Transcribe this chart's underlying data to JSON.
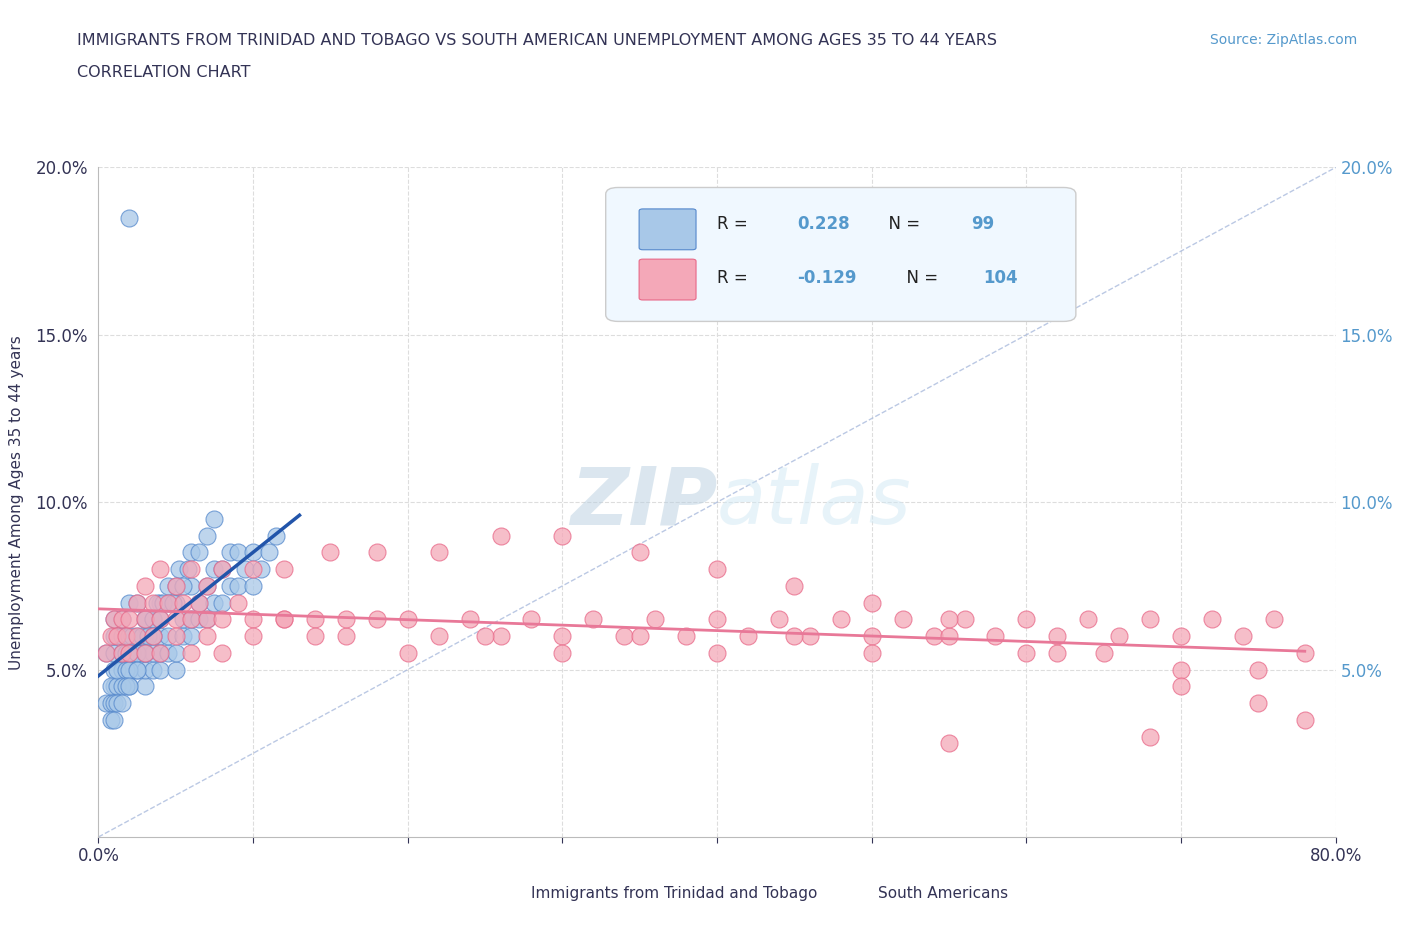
{
  "title_line1": "IMMIGRANTS FROM TRINIDAD AND TOBAGO VS SOUTH AMERICAN UNEMPLOYMENT AMONG AGES 35 TO 44 YEARS",
  "title_line2": "CORRELATION CHART",
  "source_text": "Source: ZipAtlas.com",
  "ylabel": "Unemployment Among Ages 35 to 44 years",
  "xlim": [
    0,
    0.8
  ],
  "ylim": [
    0,
    0.2
  ],
  "r_blue": "0.228",
  "n_blue": "99",
  "r_pink": "-0.129",
  "n_pink": "104",
  "blue_color": "#a8c8e8",
  "pink_color": "#f4a8b8",
  "blue_edge": "#5588cc",
  "pink_edge": "#e86888",
  "trend_blue": "#2255aa",
  "trend_pink": "#e87898",
  "diag_color": "#aabbdd",
  "title_color": "#333355",
  "axis_color": "#333355",
  "source_color": "#5599cc",
  "grid_color": "#dddddd",
  "legend_fill": "#f0f8ff",
  "legend_edge": "#cccccc",
  "watermark_color": "#d0e4f0",
  "blue_x": [
    0.005,
    0.01,
    0.01,
    0.01,
    0.01,
    0.01,
    0.015,
    0.015,
    0.015,
    0.015,
    0.02,
    0.02,
    0.02,
    0.02,
    0.02,
    0.025,
    0.025,
    0.025,
    0.025,
    0.03,
    0.03,
    0.03,
    0.03,
    0.03,
    0.035,
    0.035,
    0.035,
    0.04,
    0.04,
    0.04,
    0.04,
    0.045,
    0.045,
    0.045,
    0.05,
    0.05,
    0.05,
    0.055,
    0.055,
    0.06,
    0.06,
    0.06,
    0.065,
    0.065,
    0.07,
    0.07,
    0.075,
    0.075,
    0.08,
    0.08,
    0.085,
    0.085,
    0.09,
    0.09,
    0.095,
    0.1,
    0.1,
    0.105,
    0.11,
    0.115,
    0.005,
    0.008,
    0.008,
    0.01,
    0.012,
    0.012,
    0.015,
    0.018,
    0.018,
    0.02,
    0.022,
    0.022,
    0.025,
    0.028,
    0.03,
    0.032,
    0.035,
    0.038,
    0.04,
    0.042,
    0.045,
    0.048,
    0.05,
    0.052,
    0.055,
    0.058,
    0.06,
    0.065,
    0.07,
    0.075,
    0.008,
    0.01,
    0.012,
    0.015,
    0.018,
    0.02,
    0.025,
    0.03,
    0.035
  ],
  "blue_y": [
    0.055,
    0.045,
    0.05,
    0.055,
    0.06,
    0.065,
    0.05,
    0.055,
    0.06,
    0.065,
    0.045,
    0.05,
    0.055,
    0.06,
    0.07,
    0.05,
    0.055,
    0.06,
    0.07,
    0.045,
    0.05,
    0.055,
    0.06,
    0.065,
    0.05,
    0.055,
    0.065,
    0.05,
    0.055,
    0.06,
    0.07,
    0.055,
    0.06,
    0.07,
    0.05,
    0.055,
    0.07,
    0.06,
    0.065,
    0.06,
    0.065,
    0.075,
    0.065,
    0.07,
    0.065,
    0.075,
    0.07,
    0.08,
    0.07,
    0.08,
    0.075,
    0.085,
    0.075,
    0.085,
    0.08,
    0.075,
    0.085,
    0.08,
    0.085,
    0.09,
    0.04,
    0.04,
    0.045,
    0.04,
    0.045,
    0.05,
    0.045,
    0.05,
    0.055,
    0.05,
    0.055,
    0.06,
    0.055,
    0.06,
    0.065,
    0.06,
    0.065,
    0.07,
    0.065,
    0.07,
    0.075,
    0.07,
    0.075,
    0.08,
    0.075,
    0.08,
    0.085,
    0.085,
    0.09,
    0.095,
    0.035,
    0.035,
    0.04,
    0.04,
    0.045,
    0.045,
    0.05,
    0.055,
    0.06
  ],
  "blue_outlier_x": [
    0.02
  ],
  "blue_outlier_y": [
    0.185
  ],
  "pink_x": [
    0.005,
    0.008,
    0.01,
    0.012,
    0.015,
    0.018,
    0.02,
    0.025,
    0.03,
    0.035,
    0.04,
    0.045,
    0.05,
    0.055,
    0.06,
    0.065,
    0.07,
    0.08,
    0.09,
    0.1,
    0.12,
    0.14,
    0.16,
    0.18,
    0.2,
    0.22,
    0.24,
    0.26,
    0.28,
    0.3,
    0.32,
    0.34,
    0.36,
    0.38,
    0.4,
    0.42,
    0.44,
    0.46,
    0.48,
    0.5,
    0.52,
    0.54,
    0.56,
    0.58,
    0.6,
    0.62,
    0.64,
    0.66,
    0.68,
    0.7,
    0.72,
    0.74,
    0.76,
    0.78,
    0.015,
    0.02,
    0.025,
    0.03,
    0.035,
    0.04,
    0.05,
    0.06,
    0.07,
    0.08,
    0.1,
    0.12,
    0.14,
    0.16,
    0.2,
    0.25,
    0.3,
    0.35,
    0.4,
    0.45,
    0.5,
    0.55,
    0.6,
    0.65,
    0.7,
    0.75,
    0.03,
    0.04,
    0.05,
    0.06,
    0.07,
    0.08,
    0.1,
    0.12,
    0.15,
    0.18,
    0.22,
    0.26,
    0.3,
    0.35,
    0.4,
    0.45,
    0.5,
    0.55,
    0.62,
    0.7,
    0.75,
    0.78,
    0.55,
    0.68
  ],
  "pink_y": [
    0.055,
    0.06,
    0.065,
    0.06,
    0.065,
    0.06,
    0.065,
    0.07,
    0.065,
    0.07,
    0.065,
    0.07,
    0.065,
    0.07,
    0.065,
    0.07,
    0.065,
    0.065,
    0.07,
    0.065,
    0.065,
    0.065,
    0.06,
    0.065,
    0.065,
    0.06,
    0.065,
    0.06,
    0.065,
    0.06,
    0.065,
    0.06,
    0.065,
    0.06,
    0.065,
    0.06,
    0.065,
    0.06,
    0.065,
    0.06,
    0.065,
    0.06,
    0.065,
    0.06,
    0.065,
    0.06,
    0.065,
    0.06,
    0.065,
    0.06,
    0.065,
    0.06,
    0.065,
    0.055,
    0.055,
    0.055,
    0.06,
    0.055,
    0.06,
    0.055,
    0.06,
    0.055,
    0.06,
    0.055,
    0.06,
    0.065,
    0.06,
    0.065,
    0.055,
    0.06,
    0.055,
    0.06,
    0.055,
    0.06,
    0.055,
    0.06,
    0.055,
    0.055,
    0.05,
    0.05,
    0.075,
    0.08,
    0.075,
    0.08,
    0.075,
    0.08,
    0.08,
    0.08,
    0.085,
    0.085,
    0.085,
    0.09,
    0.09,
    0.085,
    0.08,
    0.075,
    0.07,
    0.065,
    0.055,
    0.045,
    0.04,
    0.035,
    0.028,
    0.03
  ]
}
